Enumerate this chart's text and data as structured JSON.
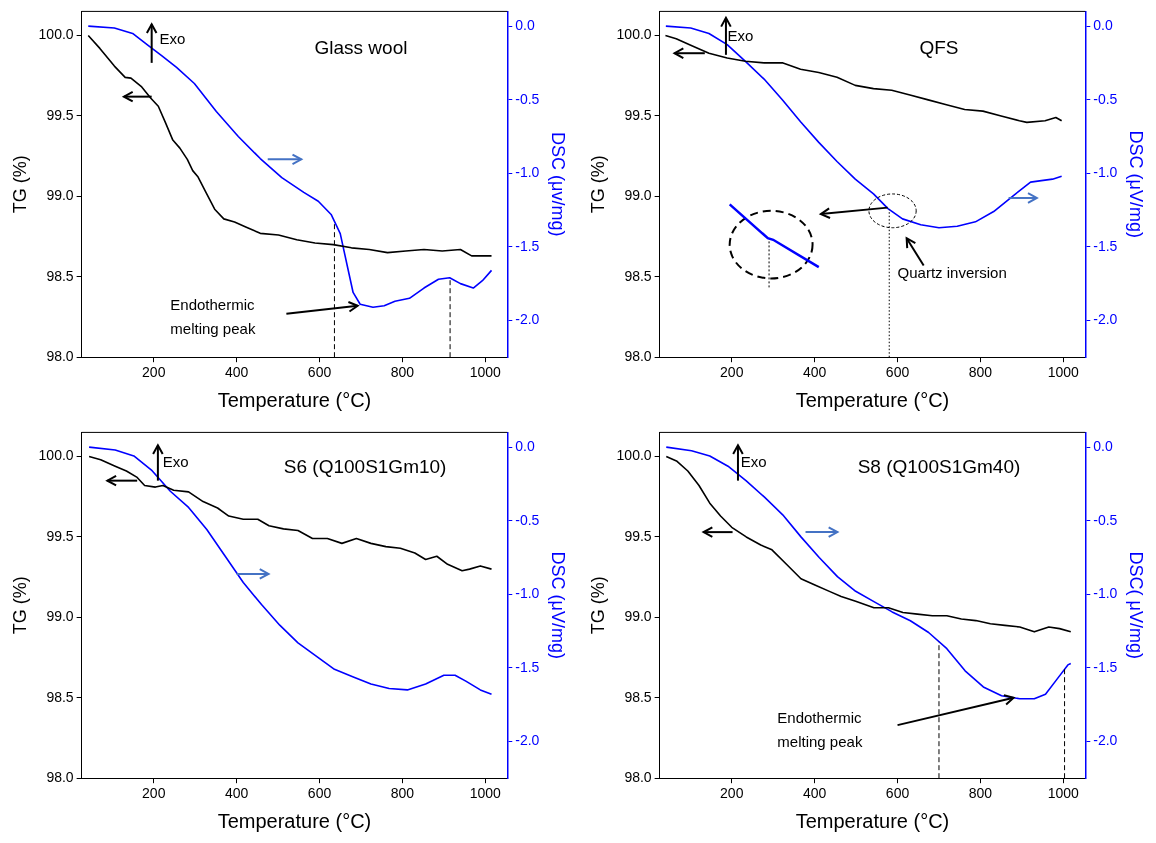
{
  "chart_data": [
    {
      "type": "line",
      "title": "Glass wool",
      "xlabel": "Temperature (°C)",
      "ylabel": "TG (%)",
      "y2label": "DSC (μv/mg)",
      "xlim": [
        26,
        1053
      ],
      "xticks": [
        200,
        400,
        600,
        800,
        1000
      ],
      "ylim": [
        98.0,
        100.15
      ],
      "yticks": [
        {
          "value": 98,
          "label": "98.0"
        },
        {
          "value": 98.5,
          "label": "98.5"
        },
        {
          "value": 99,
          "label": "99.0"
        },
        {
          "value": 99.5,
          "label": "99.5"
        },
        {
          "value": 100,
          "label": "100.0"
        }
      ],
      "y2lim": [
        -2.25,
        0.1
      ],
      "y2ticks": [
        {
          "value": -2,
          "label": "-2.0"
        },
        {
          "value": -1.5,
          "label": "-1.5"
        },
        {
          "value": -1,
          "label": "-1.0"
        },
        {
          "value": -0.5,
          "label": "-0.5"
        },
        {
          "value": 0,
          "label": "0.0"
        }
      ],
      "series": [
        {
          "color": "#000000",
          "x": [
            42,
            70,
            105,
            131,
            145,
            171,
            193,
            211,
            228,
            246,
            263,
            281,
            294,
            307,
            325,
            347,
            369,
            395,
            422,
            457,
            501,
            545,
            589,
            633,
            677,
            720,
            764,
            808,
            852,
            896,
            940,
            967,
            1015
          ],
          "values": [
            100.0,
            99.92,
            99.81,
            99.74,
            99.735,
            99.68,
            99.61,
            99.56,
            99.46,
            99.35,
            99.3,
            99.23,
            99.16,
            99.12,
            99.03,
            98.92,
            98.86,
            98.84,
            98.81,
            98.77,
            98.76,
            98.73,
            98.71,
            98.7,
            98.68,
            98.67,
            98.65,
            98.66,
            98.67,
            98.66,
            98.67,
            98.63,
            98.63
          ]
        },
        {
          "color": "#0000ff",
          "axis": "y2",
          "x": [
            42,
            105,
            149,
            184,
            219,
            255,
            298,
            351,
            404,
            457,
            509,
            562,
            597,
            628,
            650,
            667,
            681,
            698,
            729,
            756,
            782,
            817,
            852,
            887,
            914,
            940,
            971,
            993,
            1015
          ],
          "values": [
            0.0,
            -0.013,
            -0.05,
            -0.126,
            -0.2,
            -0.28,
            -0.39,
            -0.58,
            -0.75,
            -0.9,
            -1.03,
            -1.13,
            -1.19,
            -1.28,
            -1.41,
            -1.63,
            -1.81,
            -1.89,
            -1.91,
            -1.9,
            -1.87,
            -1.85,
            -1.78,
            -1.72,
            -1.71,
            -1.75,
            -1.78,
            -1.73,
            -1.66
          ]
        }
      ],
      "annotations": [
        "Exo",
        "Endothermic melting peak"
      ],
      "ref_lines": [
        {
          "axis": "x",
          "value": 636,
          "line_style": "dashed"
        },
        {
          "axis": "x",
          "value": 915,
          "line_style": "dashed"
        }
      ]
    },
    {
      "type": "line",
      "title": "QFS",
      "xlabel": "Temperature (°C)",
      "ylabel": "TG (%)",
      "y2label": "DSC (μV/mg)",
      "xlim": [
        26,
        1053
      ],
      "xticks": [
        200,
        400,
        600,
        800,
        1000
      ],
      "ylim": [
        98.0,
        100.15
      ],
      "yticks": [
        {
          "value": 98,
          "label": "98.0"
        },
        {
          "value": 98.5,
          "label": "98.5"
        },
        {
          "value": 99,
          "label": "99.0"
        },
        {
          "value": 99.5,
          "label": "99.5"
        },
        {
          "value": 100,
          "label": "100.0"
        }
      ],
      "y2lim": [
        -2.25,
        0.1
      ],
      "y2ticks": [
        {
          "value": -2,
          "label": "-2.0"
        },
        {
          "value": -1.5,
          "label": "-1.5"
        },
        {
          "value": -1,
          "label": "-1.0"
        },
        {
          "value": -0.5,
          "label": "-0.5"
        },
        {
          "value": 0,
          "label": "0.0"
        }
      ],
      "series": [
        {
          "color": "#000000",
          "x": [
            40,
            66,
            101,
            145,
            189,
            233,
            278,
            322,
            366,
            410,
            454,
            498,
            542,
            586,
            630,
            674,
            718,
            762,
            806,
            850,
            894,
            912,
            956,
            982,
            996
          ],
          "values": [
            100.0,
            99.98,
            99.94,
            99.89,
            99.86,
            99.84,
            99.83,
            99.83,
            99.79,
            99.77,
            99.74,
            99.69,
            99.67,
            99.66,
            99.63,
            99.6,
            99.57,
            99.54,
            99.53,
            99.5,
            99.47,
            99.46,
            99.47,
            99.49,
            99.47
          ]
        },
        {
          "color": "#0000ff",
          "axis": "y2",
          "x": [
            41,
            101,
            145,
            189,
            233,
            278,
            322,
            366,
            410,
            454,
            498,
            542,
            577,
            612,
            656,
            700,
            744,
            788,
            832,
            876,
            921,
            947,
            974,
            996
          ],
          "values": [
            0.0,
            -0.013,
            -0.05,
            -0.126,
            -0.24,
            -0.36,
            -0.5,
            -0.65,
            -0.79,
            -0.92,
            -1.04,
            -1.14,
            -1.24,
            -1.31,
            -1.35,
            -1.37,
            -1.36,
            -1.33,
            -1.26,
            -1.16,
            -1.06,
            -1.05,
            -1.04,
            -1.02
          ]
        }
      ],
      "annotations": [
        "Exo",
        "Quartz inversion"
      ],
      "ref_lines": [
        {
          "axis": "x",
          "value": 580,
          "line_style": "dotted"
        }
      ]
    },
    {
      "type": "line",
      "title": "S6 (Q100S1Gm10)",
      "xlabel": "Temperature (°C)",
      "ylabel": "TG (%)",
      "y2label": "DSC (μV/mg)",
      "xlim": [
        26,
        1053
      ],
      "xticks": [
        200,
        400,
        600,
        800,
        1000
      ],
      "ylim": [
        98.0,
        100.15
      ],
      "yticks": [
        {
          "value": 98,
          "label": "98.0"
        },
        {
          "value": 98.5,
          "label": "98.5"
        },
        {
          "value": 99,
          "label": "99.0"
        },
        {
          "value": 99.5,
          "label": "99.5"
        },
        {
          "value": 100,
          "label": "100.0"
        }
      ],
      "y2lim": [
        -2.25,
        0.1
      ],
      "y2ticks": [
        {
          "value": -2,
          "label": "-2.0"
        },
        {
          "value": -1.5,
          "label": "-1.5"
        },
        {
          "value": -1,
          "label": "-1.0"
        },
        {
          "value": -0.5,
          "label": "-0.5"
        },
        {
          "value": 0,
          "label": "0.0"
        }
      ],
      "series": [
        {
          "color": "#000000",
          "x": [
            44,
            72,
            107,
            134,
            160,
            178,
            204,
            222,
            248,
            284,
            319,
            354,
            381,
            416,
            451,
            478,
            513,
            548,
            583,
            619,
            654,
            689,
            724,
            760,
            795,
            830,
            856,
            883,
            909,
            944,
            962,
            988,
            1015
          ],
          "values": [
            100.0,
            99.98,
            99.94,
            99.91,
            99.87,
            99.82,
            99.81,
            99.82,
            99.79,
            99.78,
            99.72,
            99.68,
            99.63,
            99.61,
            99.61,
            99.57,
            99.55,
            99.54,
            99.49,
            99.49,
            99.46,
            99.49,
            99.46,
            99.44,
            99.43,
            99.4,
            99.36,
            99.38,
            99.33,
            99.29,
            99.3,
            99.32,
            99.3
          ]
        },
        {
          "color": "#0000ff",
          "axis": "y2",
          "x": [
            44,
            107,
            152,
            196,
            240,
            284,
            328,
            372,
            416,
            460,
            504,
            548,
            592,
            636,
            680,
            724,
            768,
            812,
            856,
            900,
            927,
            953,
            988,
            1015
          ],
          "values": [
            0.0,
            -0.02,
            -0.06,
            -0.16,
            -0.3,
            -0.41,
            -0.56,
            -0.74,
            -0.92,
            -1.07,
            -1.21,
            -1.33,
            -1.42,
            -1.51,
            -1.56,
            -1.61,
            -1.64,
            -1.65,
            -1.61,
            -1.55,
            -1.55,
            -1.59,
            -1.65,
            -1.68
          ]
        }
      ],
      "annotations": [
        "Exo"
      ]
    },
    {
      "type": "line",
      "title": "S8 (Q100S1Gm40)",
      "xlabel": "Temperature (°C)",
      "ylabel": "TG (%)",
      "y2label": "DSC( μV/mg)",
      "xlim": [
        26,
        1053
      ],
      "xticks": [
        200,
        400,
        600,
        800,
        1000
      ],
      "ylim": [
        98.0,
        100.15
      ],
      "yticks": [
        {
          "value": 98,
          "label": "98.0"
        },
        {
          "value": 98.5,
          "label": "98.5"
        },
        {
          "value": 99,
          "label": "99.0"
        },
        {
          "value": 99.5,
          "label": "99.5"
        },
        {
          "value": 100,
          "label": "100.0"
        }
      ],
      "y2lim": [
        -2.25,
        0.1
      ],
      "y2ticks": [
        {
          "value": -2,
          "label": "-2.0"
        },
        {
          "value": -1.5,
          "label": "-1.5"
        },
        {
          "value": -1,
          "label": "-1.0"
        },
        {
          "value": -0.5,
          "label": "-0.5"
        },
        {
          "value": 0,
          "label": "0.0"
        }
      ],
      "series": [
        {
          "color": "#000000",
          "x": [
            42,
            68,
            94,
            121,
            147,
            173,
            200,
            235,
            270,
            297,
            332,
            367,
            402,
            437,
            464,
            499,
            543,
            578,
            613,
            648,
            684,
            719,
            754,
            789,
            824,
            859,
            895,
            930,
            965,
            991,
            1018
          ],
          "values": [
            100.0,
            99.97,
            99.91,
            99.82,
            99.71,
            99.63,
            99.56,
            99.5,
            99.45,
            99.42,
            99.33,
            99.24,
            99.2,
            99.16,
            99.13,
            99.1,
            99.06,
            99.06,
            99.03,
            99.02,
            99.01,
            99.01,
            98.99,
            98.98,
            98.96,
            98.95,
            98.94,
            98.91,
            98.94,
            98.93,
            98.91
          ]
        },
        {
          "color": "#0000ff",
          "axis": "y2",
          "x": [
            42,
            103,
            147,
            191,
            235,
            279,
            323,
            367,
            411,
            455,
            499,
            543,
            587,
            631,
            675,
            719,
            763,
            807,
            851,
            895,
            930,
            957,
            984,
            1011,
            1018
          ],
          "values": [
            0.0,
            -0.025,
            -0.06,
            -0.13,
            -0.23,
            -0.34,
            -0.46,
            -0.61,
            -0.75,
            -0.88,
            -0.98,
            -1.05,
            -1.12,
            -1.18,
            -1.26,
            -1.37,
            -1.52,
            -1.63,
            -1.69,
            -1.71,
            -1.71,
            -1.68,
            -1.58,
            -1.48,
            -1.47
          ]
        }
      ],
      "annotations": [
        "Exo",
        "Endothermic melting peak"
      ],
      "ref_lines": [
        {
          "axis": "x",
          "value": 700,
          "line_style": "dashed"
        },
        {
          "axis": "x",
          "value": 1003,
          "line_style": "dashed"
        }
      ]
    }
  ]
}
